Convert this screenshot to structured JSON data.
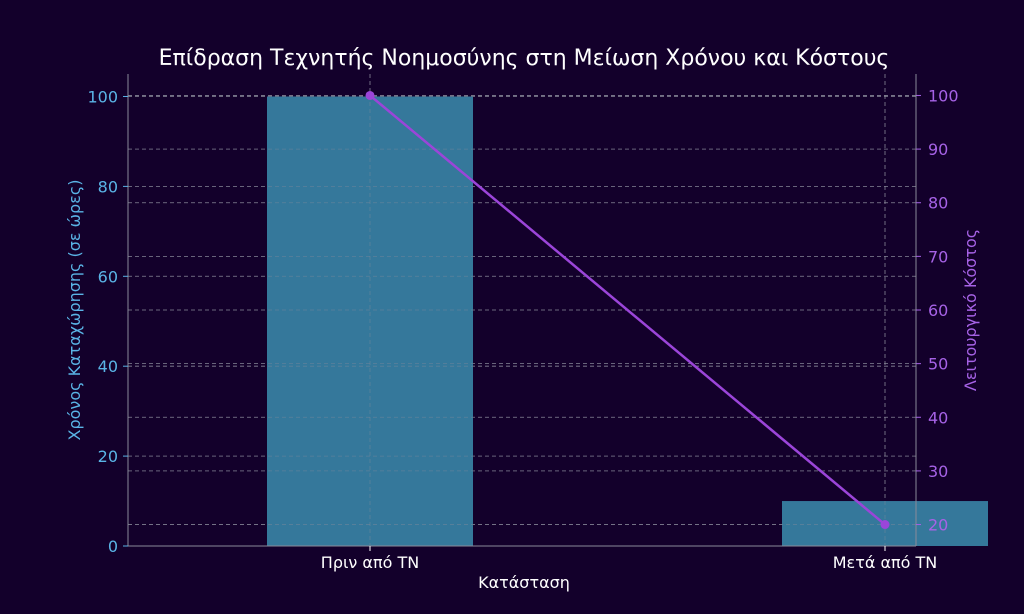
{
  "chart_data": {
    "type": "bar+line",
    "title": "Επίδραση Τεχνητής Νοημοσύνης στη Μείωση Χρόνου και Κόστους",
    "xlabel": "Κατάσταση",
    "categories": [
      "Πριν από ΤΝ",
      "Μετά από ΤΝ"
    ],
    "bar_series": {
      "axis": "left",
      "ylabel": "Χρόνος Καταχώρησης (σε ώρες)",
      "values": [
        100,
        10
      ],
      "color": "#35789b"
    },
    "line_series": {
      "axis": "right",
      "ylabel": "Λειτουργικό Κόστος",
      "values": [
        100,
        20
      ],
      "color": "#9b45d9"
    },
    "left_axis": {
      "ylim": [
        0,
        105
      ],
      "ticks": [
        0,
        20,
        40,
        60,
        80,
        100
      ],
      "color": "#5ab4e6"
    },
    "right_axis": {
      "ylim": [
        16,
        104
      ],
      "ticks": [
        20,
        30,
        40,
        50,
        60,
        70,
        80,
        90,
        100
      ],
      "color": "#a662e6"
    },
    "grid": true,
    "background": "#13002b"
  }
}
